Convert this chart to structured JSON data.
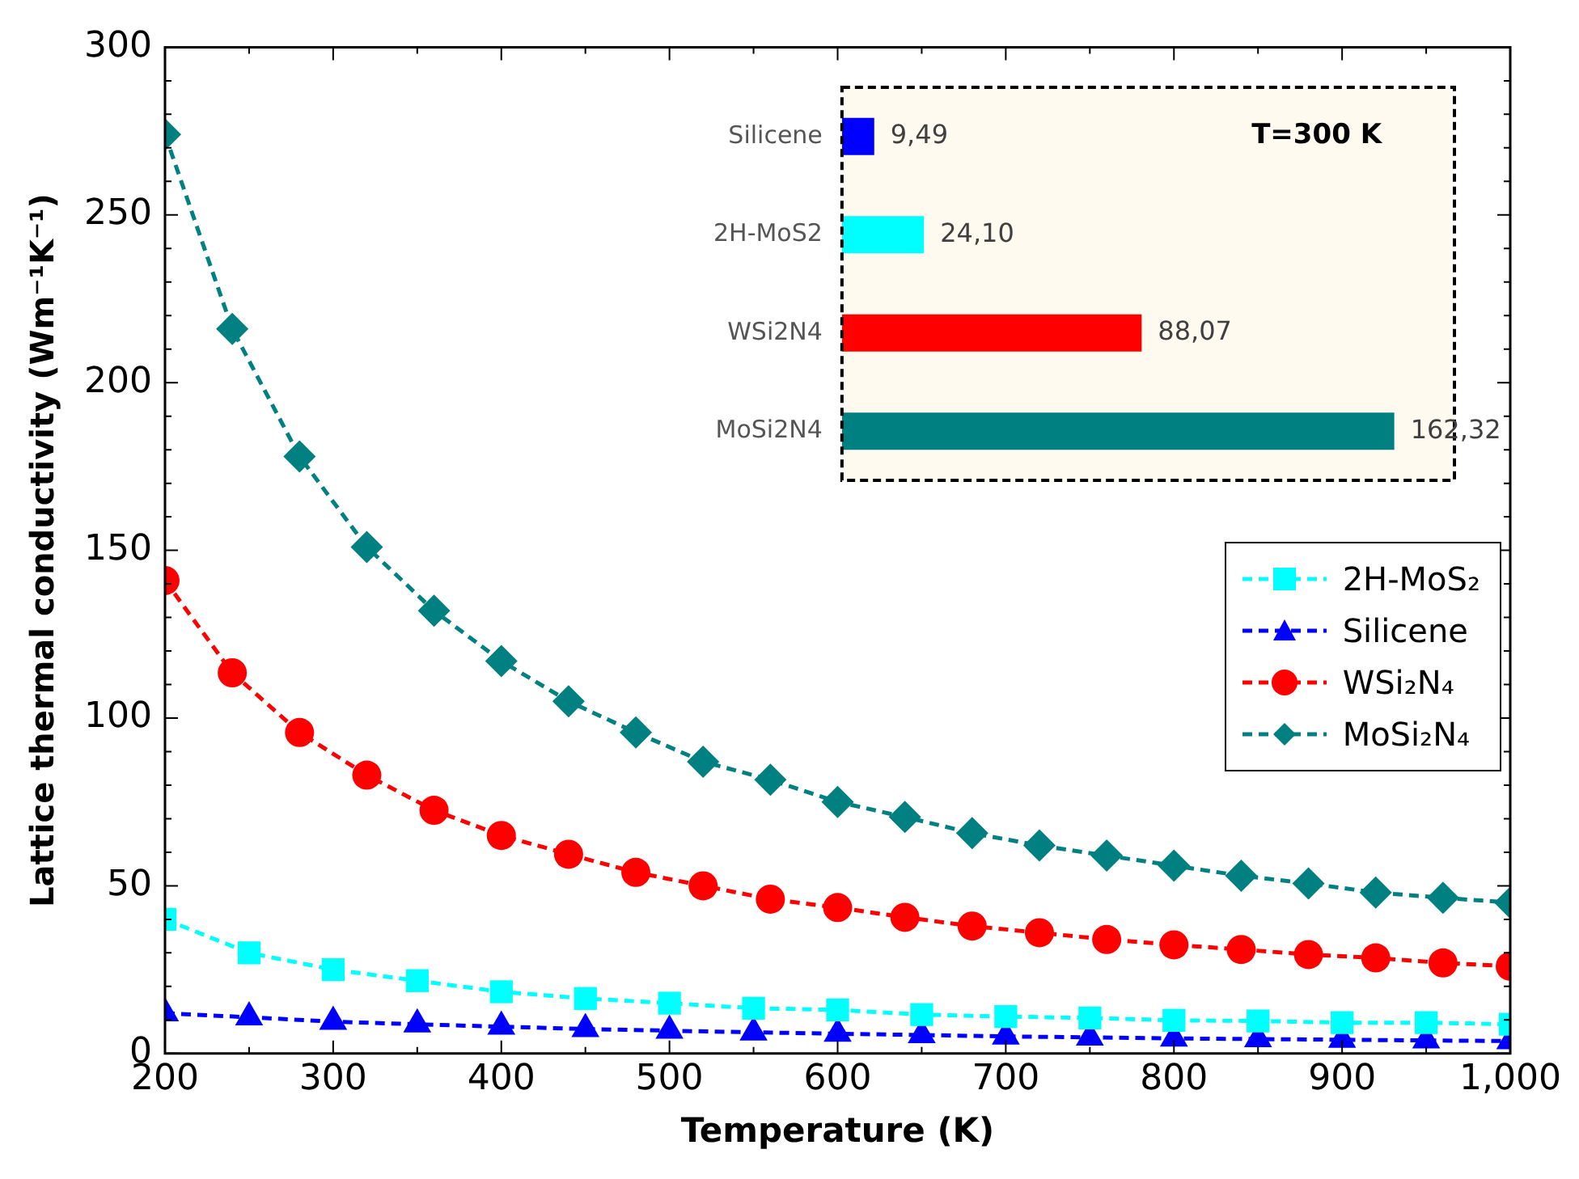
{
  "chart_data": [
    {
      "type": "line",
      "xlabel": "Temperature (K)",
      "ylabel": "Lattice thermal conductivity (Wm⁻¹K⁻¹)",
      "xlim": [
        200,
        1000
      ],
      "ylim": [
        0,
        300
      ],
      "xticks": [
        200,
        {
          "value": 250,
          "label": null
        },
        300,
        {
          "value": 350,
          "label": null
        },
        400,
        {
          "value": 450,
          "label": null
        },
        500,
        {
          "value": 550,
          "label": null
        },
        600,
        {
          "value": 650,
          "label": null
        },
        700,
        {
          "value": 750,
          "label": null
        },
        800,
        {
          "value": 850,
          "label": null
        },
        900,
        {
          "value": 950,
          "label": null
        },
        {
          "value": 1000,
          "label": "1,000"
        }
      ],
      "yticks": [
        0,
        {
          "value": 10,
          "label": null
        },
        {
          "value": 20,
          "label": null
        },
        {
          "value": 30,
          "label": null
        },
        {
          "value": 40,
          "label": null
        },
        50,
        {
          "value": 60,
          "label": null
        },
        {
          "value": 70,
          "label": null
        },
        {
          "value": 80,
          "label": null
        },
        {
          "value": 90,
          "label": null
        },
        100,
        {
          "value": 110,
          "label": null
        },
        {
          "value": 120,
          "label": null
        },
        {
          "value": 130,
          "label": null
        },
        {
          "value": 140,
          "label": null
        },
        150,
        {
          "value": 160,
          "label": null
        },
        {
          "value": 170,
          "label": null
        },
        {
          "value": 180,
          "label": null
        },
        {
          "value": 190,
          "label": null
        },
        200,
        {
          "value": 210,
          "label": null
        },
        {
          "value": 220,
          "label": null
        },
        {
          "value": 230,
          "label": null
        },
        {
          "value": 240,
          "label": null
        },
        250,
        {
          "value": 260,
          "label": null
        },
        {
          "value": 270,
          "label": null
        },
        {
          "value": 280,
          "label": null
        },
        {
          "value": 290,
          "label": null
        },
        300
      ],
      "grid": false,
      "legend": "right",
      "line_style": "dashed",
      "series": [
        {
          "name": "2H-MoS₂",
          "color": "#00ffff",
          "marker": "square",
          "x": [
            200,
            250,
            300,
            350,
            400,
            450,
            500,
            550,
            600,
            650,
            700,
            750,
            800,
            850,
            900,
            950,
            1000
          ],
          "values": [
            40,
            30,
            25,
            21.7,
            18.4,
            16.4,
            15,
            13.5,
            13,
            11.6,
            11,
            10.6,
            9.9,
            9.7,
            9.2,
            9.2,
            8.7
          ]
        },
        {
          "name": "Silicene",
          "color": "#0000ff",
          "marker": "triangle",
          "x": [
            200,
            250,
            300,
            350,
            400,
            450,
            500,
            550,
            600,
            650,
            700,
            750,
            800,
            850,
            900,
            950,
            1000
          ],
          "values": [
            12,
            10.8,
            9.5,
            8.7,
            8,
            7.3,
            6.8,
            6.3,
            5.9,
            5.5,
            5.1,
            4.8,
            4.5,
            4.3,
            4.1,
            3.9,
            3.7
          ]
        },
        {
          "name": "WSi₂N₄",
          "color": "#ff0000",
          "marker": "circle",
          "x": [
            200,
            240,
            280,
            320,
            360,
            400,
            440,
            480,
            520,
            560,
            600,
            640,
            680,
            720,
            760,
            800,
            840,
            880,
            920,
            960,
            1000
          ],
          "values": [
            141,
            113.5,
            95.7,
            83,
            72.5,
            65,
            59.4,
            54,
            50,
            46,
            43.5,
            40.6,
            38,
            36,
            34,
            32.4,
            31,
            29.5,
            28.5,
            27,
            26
          ]
        },
        {
          "name": "MoSi₂N₄",
          "color": "#008080",
          "marker": "diamond",
          "x": [
            200,
            240,
            280,
            320,
            360,
            400,
            440,
            480,
            520,
            560,
            600,
            640,
            680,
            720,
            760,
            800,
            840,
            880,
            920,
            960,
            1000
          ],
          "values": [
            274,
            216,
            178,
            151,
            132,
            117,
            105,
            95.7,
            87,
            81.6,
            75,
            70.5,
            65.7,
            62,
            59,
            56,
            53,
            50.7,
            48,
            46.4,
            45
          ]
        }
      ]
    },
    {
      "type": "bar",
      "orientation": "horizontal",
      "categories": [
        "Silicene",
        "2H-MoS2",
        "WSi2N4",
        "MoSi2N4"
      ],
      "values": [
        9.49,
        24.1,
        88.07,
        162.32
      ],
      "colors": [
        "#0000ff",
        "#00ffff",
        "#ff0000",
        "#008080"
      ],
      "value_labels": [
        "9,49",
        "24,10",
        "88,07",
        "162,32"
      ],
      "annotations": [
        "T=300 K"
      ],
      "legend": false,
      "grid": false
    }
  ]
}
